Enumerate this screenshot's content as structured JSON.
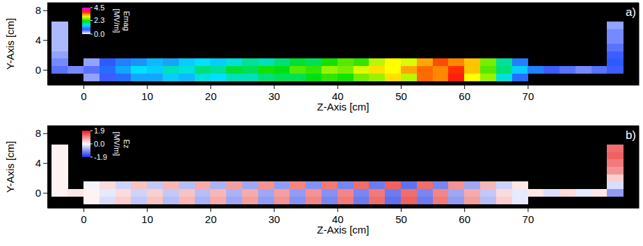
{
  "chart_data": [
    {
      "type": "heatmap",
      "label": "a)",
      "xlabel": "Z-Axis [cm]",
      "ylabel": "Y-Axis [cm]",
      "xlim": [
        -5.7,
        87.5
      ],
      "xticks": [
        0,
        10,
        20,
        30,
        40,
        50,
        60,
        70
      ],
      "ylim": [
        -2,
        9
      ],
      "yticks": [
        0,
        4,
        8
      ],
      "colorbar_title": "Emag",
      "colorbar_unit": "[MV/m]",
      "colorbar_lim": [
        0,
        4.5
      ],
      "colorbar_ticks": [
        {
          "value": 0,
          "label": "0.0"
        },
        2.3,
        4.5
      ],
      "x": [
        -3.75,
        -1.25,
        1.25,
        3.75,
        6.25,
        8.75,
        11.25,
        13.75,
        16.25,
        18.75,
        21.25,
        23.75,
        26.25,
        28.75,
        31.25,
        33.75,
        36.25,
        38.75,
        41.25,
        43.75,
        46.25,
        48.75,
        51.25,
        53.75,
        56.25,
        58.75,
        61.25,
        63.75,
        66.25,
        68.75,
        71.25,
        73.75,
        76.25,
        78.75,
        81.25,
        83.75,
        86.25
      ],
      "y": [
        6,
        5,
        4,
        3,
        2,
        1,
        0,
        -1
      ],
      "values": [
        [
          0.3,
          null,
          null,
          null,
          null,
          null,
          null,
          null,
          null,
          null,
          null,
          null,
          null,
          null,
          null,
          null,
          null,
          null,
          null,
          null,
          null,
          null,
          null,
          null,
          null,
          null,
          null,
          null,
          null,
          null,
          null,
          null,
          null,
          null,
          null,
          0.4,
          null
        ],
        [
          0.3,
          null,
          null,
          null,
          null,
          null,
          null,
          null,
          null,
          null,
          null,
          null,
          null,
          null,
          null,
          null,
          null,
          null,
          null,
          null,
          null,
          null,
          null,
          null,
          null,
          null,
          null,
          null,
          null,
          null,
          null,
          null,
          null,
          null,
          null,
          0.5,
          null
        ],
        [
          0.3,
          null,
          null,
          null,
          null,
          null,
          null,
          null,
          null,
          null,
          null,
          null,
          null,
          null,
          null,
          null,
          null,
          null,
          null,
          null,
          null,
          null,
          null,
          null,
          null,
          null,
          null,
          null,
          null,
          null,
          null,
          null,
          null,
          null,
          null,
          0.5,
          null
        ],
        [
          0.3,
          null,
          null,
          null,
          null,
          null,
          null,
          null,
          null,
          null,
          null,
          null,
          null,
          null,
          null,
          null,
          null,
          null,
          null,
          null,
          null,
          null,
          null,
          null,
          null,
          null,
          null,
          null,
          null,
          null,
          null,
          null,
          null,
          null,
          null,
          0.6,
          null
        ],
        [
          0.4,
          null,
          null,
          null,
          null,
          null,
          null,
          null,
          null,
          null,
          null,
          null,
          null,
          null,
          null,
          null,
          null,
          null,
          null,
          null,
          null,
          null,
          null,
          null,
          null,
          null,
          null,
          null,
          null,
          null,
          null,
          null,
          null,
          null,
          null,
          0.7,
          null
        ],
        [
          0.5,
          null,
          0.4,
          0.8,
          1.0,
          1.1,
          1.3,
          1.2,
          1.4,
          1.5,
          1.4,
          1.6,
          1.8,
          1.7,
          1.9,
          2.1,
          2.0,
          2.3,
          2.5,
          2.4,
          2.8,
          3.0,
          2.9,
          3.3,
          3.6,
          3.4,
          3.2,
          2.6,
          1.8,
          1.0,
          null,
          null,
          null,
          null,
          null,
          0.8,
          null
        ],
        [
          0.6,
          0.5,
          0.6,
          0.9,
          1.2,
          1.5,
          1.4,
          1.7,
          1.6,
          1.9,
          1.8,
          2.1,
          2.0,
          2.3,
          2.2,
          2.5,
          2.4,
          2.7,
          2.6,
          2.9,
          3.1,
          3.0,
          3.3,
          3.5,
          3.4,
          3.7,
          3.2,
          2.5,
          1.9,
          1.4,
          1.0,
          0.7,
          0.6,
          0.5,
          0.6,
          0.7,
          null
        ],
        [
          null,
          null,
          0.4,
          0.7,
          0.9,
          1.2,
          1.2,
          1.4,
          1.3,
          1.6,
          1.5,
          1.7,
          1.7,
          1.9,
          2.0,
          2.0,
          2.2,
          2.4,
          2.3,
          2.6,
          2.7,
          3.1,
          2.8,
          3.5,
          3.4,
          3.8,
          3.0,
          2.7,
          1.6,
          0.9,
          null,
          null,
          null,
          null,
          null,
          null,
          null
        ]
      ]
    },
    {
      "type": "heatmap",
      "label": "b)",
      "xlabel": "Z-Axis [cm]",
      "ylabel": "Y-Axis [cm]",
      "xlim": [
        -5.7,
        87.5
      ],
      "xticks": [
        0,
        10,
        20,
        30,
        40,
        50,
        60,
        70
      ],
      "ylim": [
        -2,
        9
      ],
      "yticks": [
        0,
        4,
        8
      ],
      "colorbar_title": "Ez",
      "colorbar_unit": "[MV/m]",
      "colorbar_lim": [
        -1.9,
        1.9
      ],
      "colorbar_ticks": [
        -1.9,
        {
          "value": 0,
          "label": "0.0"
        },
        1.9
      ],
      "x": [
        -3.75,
        -1.25,
        1.25,
        3.75,
        6.25,
        8.75,
        11.25,
        13.75,
        16.25,
        18.75,
        21.25,
        23.75,
        26.25,
        28.75,
        31.25,
        33.75,
        36.25,
        38.75,
        41.25,
        43.75,
        46.25,
        48.75,
        51.25,
        53.75,
        56.25,
        58.75,
        61.25,
        63.75,
        66.25,
        68.75,
        71.25,
        73.75,
        76.25,
        78.75,
        81.25,
        83.75,
        86.25
      ],
      "y": [
        6,
        5,
        4,
        3,
        2,
        1,
        0,
        -1
      ],
      "values": [
        [
          0.1,
          null,
          null,
          null,
          null,
          null,
          null,
          null,
          null,
          null,
          null,
          null,
          null,
          null,
          null,
          null,
          null,
          null,
          null,
          null,
          null,
          null,
          null,
          null,
          null,
          null,
          null,
          null,
          null,
          null,
          null,
          null,
          null,
          null,
          null,
          1.2,
          null
        ],
        [
          0.1,
          null,
          null,
          null,
          null,
          null,
          null,
          null,
          null,
          null,
          null,
          null,
          null,
          null,
          null,
          null,
          null,
          null,
          null,
          null,
          null,
          null,
          null,
          null,
          null,
          null,
          null,
          null,
          null,
          null,
          null,
          null,
          null,
          null,
          null,
          1.3,
          null
        ],
        [
          0.1,
          null,
          null,
          null,
          null,
          null,
          null,
          null,
          null,
          null,
          null,
          null,
          null,
          null,
          null,
          null,
          null,
          null,
          null,
          null,
          null,
          null,
          null,
          null,
          null,
          null,
          null,
          null,
          null,
          null,
          null,
          null,
          null,
          null,
          null,
          1.1,
          null
        ],
        [
          0.1,
          null,
          null,
          null,
          null,
          null,
          null,
          null,
          null,
          null,
          null,
          null,
          null,
          null,
          null,
          null,
          null,
          null,
          null,
          null,
          null,
          null,
          null,
          null,
          null,
          null,
          null,
          null,
          null,
          null,
          null,
          null,
          null,
          null,
          null,
          0.9,
          null
        ],
        [
          0.1,
          null,
          null,
          null,
          null,
          null,
          null,
          null,
          null,
          null,
          null,
          null,
          null,
          null,
          null,
          null,
          null,
          null,
          null,
          null,
          null,
          null,
          null,
          null,
          null,
          null,
          null,
          null,
          null,
          null,
          null,
          null,
          null,
          null,
          null,
          0.4,
          null
        ],
        [
          0.1,
          null,
          -0.1,
          0.3,
          -0.4,
          0.5,
          -0.5,
          0.6,
          -0.6,
          0.7,
          -0.7,
          0.8,
          -0.8,
          0.9,
          -0.9,
          1.0,
          -1.0,
          1.1,
          -1.1,
          1.2,
          -1.2,
          1.3,
          -1.3,
          1.2,
          -1.1,
          0.9,
          -0.8,
          0.6,
          -0.4,
          0.2,
          null,
          null,
          null,
          null,
          null,
          -0.3,
          null
        ],
        [
          0.1,
          0.2,
          0.1,
          -0.2,
          0.3,
          -0.4,
          0.4,
          -0.5,
          0.5,
          -0.6,
          0.6,
          -0.7,
          0.7,
          -0.8,
          0.8,
          -0.9,
          0.9,
          -1.0,
          1.0,
          -1.1,
          1.1,
          -1.2,
          1.2,
          -1.1,
          1.0,
          -0.8,
          0.7,
          -0.5,
          0.3,
          -0.2,
          0.2,
          -0.3,
          0.3,
          -0.2,
          0.2,
          -0.9,
          null
        ],
        [
          null,
          null,
          0.1,
          -0.3,
          0.4,
          -0.5,
          0.5,
          -0.6,
          0.6,
          -0.7,
          0.7,
          -0.8,
          0.8,
          -0.9,
          0.9,
          -1.0,
          1.0,
          -1.1,
          1.1,
          -1.2,
          1.2,
          -1.3,
          1.3,
          -1.2,
          1.1,
          -0.9,
          0.8,
          -0.6,
          0.4,
          -0.2,
          null,
          null,
          null,
          null,
          null,
          null,
          null
        ]
      ]
    }
  ]
}
